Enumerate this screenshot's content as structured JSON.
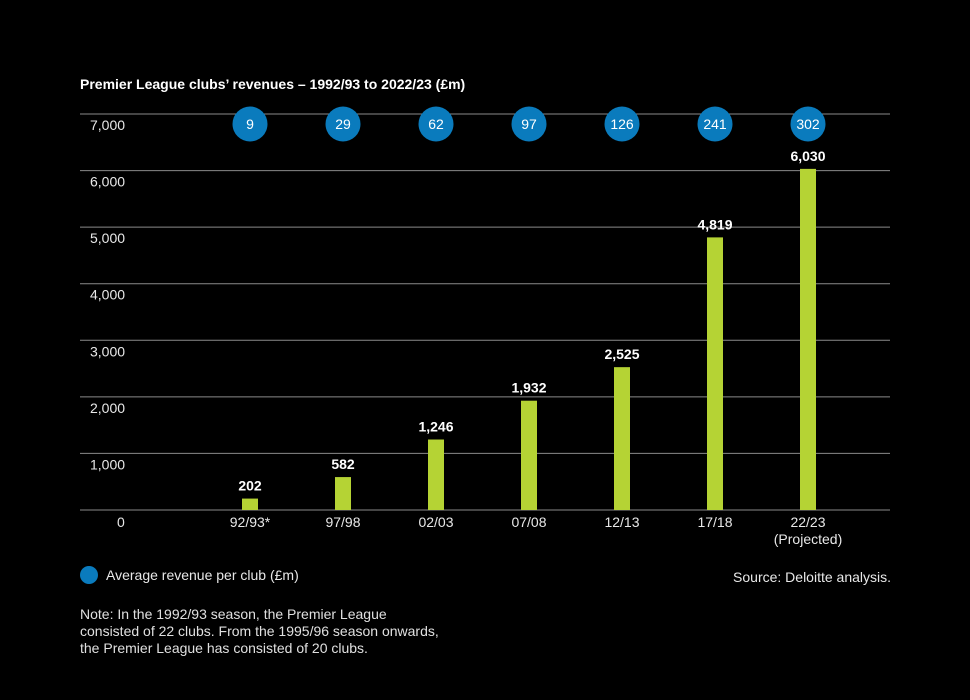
{
  "chart_data": {
    "type": "bar",
    "title": "Premier League clubs’ revenues – 1992/93 to 2022/23 (£m)",
    "xlabel": "",
    "ylabel": "",
    "ylim": [
      0,
      7000
    ],
    "yticks": [
      0,
      1000,
      2000,
      3000,
      4000,
      5000,
      6000,
      7000
    ],
    "ytick_labels": [
      "0",
      "1,000",
      "2,000",
      "3,000",
      "4,000",
      "5,000",
      "6,000",
      "7,000"
    ],
    "grid": true,
    "categories": [
      "92/93*",
      "97/98",
      "02/03",
      "07/08",
      "12/13",
      "17/18",
      "22/23"
    ],
    "category_sublabels": [
      "",
      "",
      "",
      "",
      "",
      "",
      "(Projected)"
    ],
    "values": [
      202,
      582,
      1246,
      1932,
      2525,
      4819,
      6030
    ],
    "value_labels": [
      "202",
      "582",
      "1,246",
      "1,932",
      "2,525",
      "4,819",
      "6,030"
    ],
    "avg_per_club": [
      9,
      29,
      62,
      97,
      126,
      241,
      302
    ],
    "avg_per_club_labels": [
      "9",
      "29",
      "62",
      "97",
      "126",
      "241",
      "302"
    ],
    "legend": [
      {
        "name": "Average revenue per club (£m)",
        "color": "#0a7bbd"
      }
    ],
    "legend_position": "bottom-left"
  },
  "source": "Source: Deloitte analysis.",
  "note": "Note: In the 1992/93 season, the Premier League\nconsisted of 22 clubs. From the 1995/96 season onwards,\nthe Premier League has consisted of 20 clubs.",
  "colors": {
    "bar": "#b5d334",
    "circle": "#0a7bbd",
    "gridline": "#8a8a8a",
    "background": "#000000",
    "text": "#ffffff"
  }
}
